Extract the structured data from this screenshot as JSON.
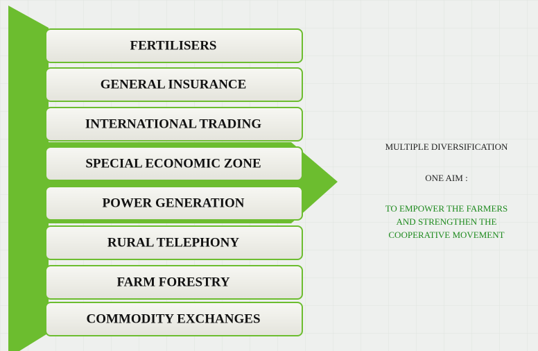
{
  "items": [
    "FERTILISERS",
    "GENERAL INSURANCE",
    "INTERNATIONAL TRADING",
    "SPECIAL ECONOMIC ZONE",
    "POWER GENERATION",
    "RURAL TELEPHONY",
    "FARM FORESTRY",
    "COMMODITY EXCHANGES"
  ],
  "message": {
    "headline": "MULTIPLE DIVERSIFICATION",
    "aim_label": "ONE AIM :",
    "aim_lines": [
      "TO EMPOWER THE FARMERS",
      "AND STRENGTHEN THE",
      "COOPERATIVE MOVEMENT"
    ]
  }
}
